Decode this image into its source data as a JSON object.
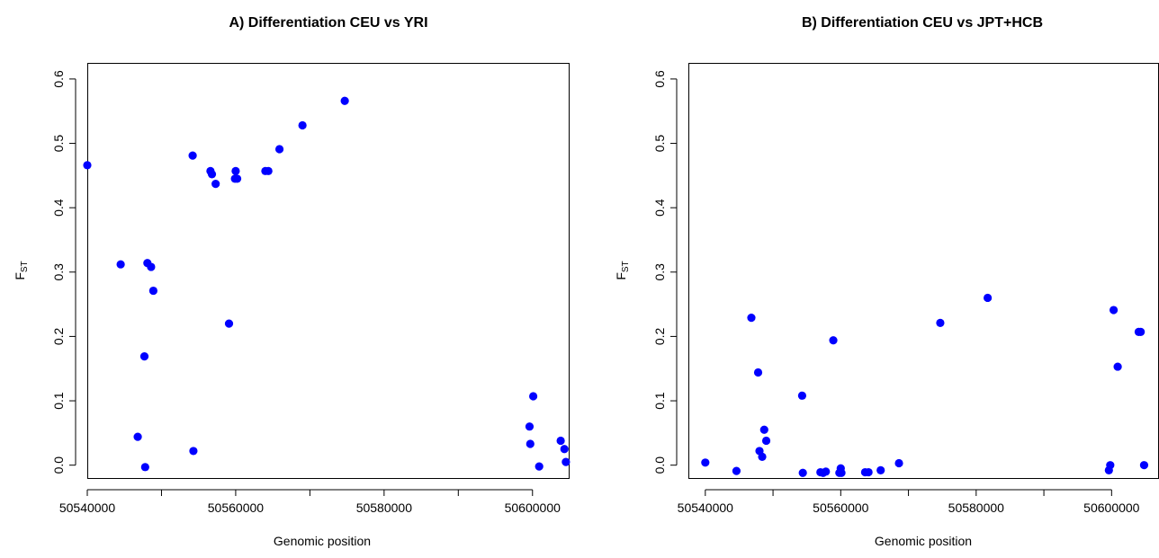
{
  "chart_data": [
    {
      "type": "scatter",
      "title": "A) Differentiation CEU vs YRI",
      "xlabel": "Genomic position",
      "ylabel": "F",
      "ylabel_sub": "ST",
      "xlim": [
        50540000,
        50605000
      ],
      "ylim": [
        0.0,
        0.6
      ],
      "x_ticks": [
        50540000,
        50550000,
        50560000,
        50570000,
        50580000,
        50590000,
        50600000
      ],
      "x_tick_labels": [
        "50540000",
        "",
        "50560000",
        "",
        "50580000",
        "",
        "50600000"
      ],
      "y_ticks": [
        0.0,
        0.1,
        0.2,
        0.3,
        0.4,
        0.5,
        0.6
      ],
      "y_tick_labels": [
        "0.0",
        "0.1",
        "0.2",
        "0.3",
        "0.4",
        "0.5",
        "0.6"
      ],
      "grid": false,
      "point_color": "#0000ff",
      "series": [
        {
          "x": [
            50540000,
            50544500,
            50546800,
            50547700,
            50547800,
            50548100,
            50548600,
            50548900,
            50554200,
            50554300,
            50556600,
            50556800,
            50557300,
            50559100,
            50559900,
            50560000,
            50560200,
            50564000,
            50564400,
            50565900,
            50569000,
            50574700,
            50599600,
            50599700,
            50600100,
            50600900,
            50603800,
            50604300,
            50604500
          ],
          "y": [
            0.466,
            0.312,
            0.044,
            0.169,
            -0.003,
            0.314,
            0.308,
            0.271,
            0.481,
            0.022,
            0.457,
            0.452,
            0.437,
            0.22,
            0.445,
            0.457,
            0.445,
            0.457,
            0.457,
            0.491,
            0.528,
            0.566,
            0.06,
            0.033,
            0.107,
            -0.002,
            0.038,
            0.025,
            0.005
          ]
        }
      ]
    },
    {
      "type": "scatter",
      "title": "B) Differentiation CEU vs JPT+HCB",
      "xlabel": "Genomic position",
      "ylabel": "F",
      "ylabel_sub": "ST",
      "xlim": [
        50537500,
        50607000
      ],
      "ylim": [
        0.0,
        0.6
      ],
      "x_ticks": [
        50540000,
        50550000,
        50560000,
        50570000,
        50580000,
        50590000,
        50600000
      ],
      "x_tick_labels": [
        "50540000",
        "",
        "50560000",
        "",
        "50580000",
        "",
        "50600000"
      ],
      "y_ticks": [
        0.0,
        0.1,
        0.2,
        0.3,
        0.4,
        0.5,
        0.6
      ],
      "y_tick_labels": [
        "0.0",
        "0.1",
        "0.2",
        "0.3",
        "0.4",
        "0.5",
        "0.6"
      ],
      "grid": false,
      "point_color": "#0000ff",
      "series": [
        {
          "x": [
            50540000,
            50544600,
            50546800,
            50547800,
            50548000,
            50548400,
            50548700,
            50549000,
            50554300,
            50554400,
            50557000,
            50557400,
            50557800,
            50558900,
            50559800,
            50560000,
            50560100,
            50563600,
            50564100,
            50565900,
            50568600,
            50574700,
            50581700,
            50599600,
            50599800,
            50600300,
            50600900,
            50604000,
            50604300,
            50604800
          ],
          "y": [
            0.004,
            -0.009,
            0.229,
            0.144,
            0.022,
            0.013,
            0.055,
            0.038,
            0.108,
            -0.012,
            -0.011,
            -0.012,
            -0.01,
            0.194,
            -0.012,
            -0.005,
            -0.012,
            -0.011,
            -0.011,
            -0.008,
            0.003,
            0.221,
            0.26,
            -0.008,
            0.0,
            0.241,
            0.153,
            0.207,
            0.207,
            0.0
          ]
        }
      ]
    }
  ]
}
